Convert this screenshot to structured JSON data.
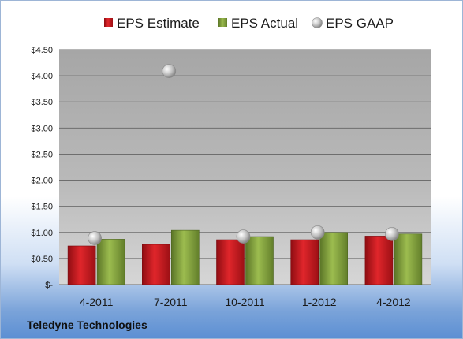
{
  "chart_data": {
    "type": "bar",
    "title": "",
    "xlabel": "",
    "ylabel": "",
    "categories": [
      "4-2011",
      "7-2011",
      "10-2011",
      "1-2012",
      "4-2012"
    ],
    "series": [
      {
        "name": "EPS Estimate",
        "kind": "bar",
        "color": "#c8171d",
        "values": [
          0.74,
          0.77,
          0.86,
          0.86,
          0.93
        ]
      },
      {
        "name": "EPS Actual",
        "kind": "bar",
        "color": "#7f9f3a",
        "values": [
          0.87,
          1.04,
          0.92,
          1.0,
          0.97
        ]
      },
      {
        "name": "EPS GAAP",
        "kind": "marker",
        "color": "#b8b8b8",
        "values": [
          0.89,
          4.09,
          0.92,
          1.0,
          0.97
        ]
      }
    ],
    "ylim": [
      0,
      4.5
    ],
    "yticks": [
      0,
      0.5,
      1.0,
      1.5,
      2.0,
      2.5,
      3.0,
      3.5,
      4.0,
      4.5
    ],
    "ytick_labels": [
      "$-",
      "$0.50",
      "$1.00",
      "$1.50",
      "$2.00",
      "$2.50",
      "$3.00",
      "$3.50",
      "$4.00",
      "$4.50"
    ],
    "grid": true,
    "legend_position": "top"
  },
  "footer": {
    "company": "Teledyne Technologies"
  }
}
